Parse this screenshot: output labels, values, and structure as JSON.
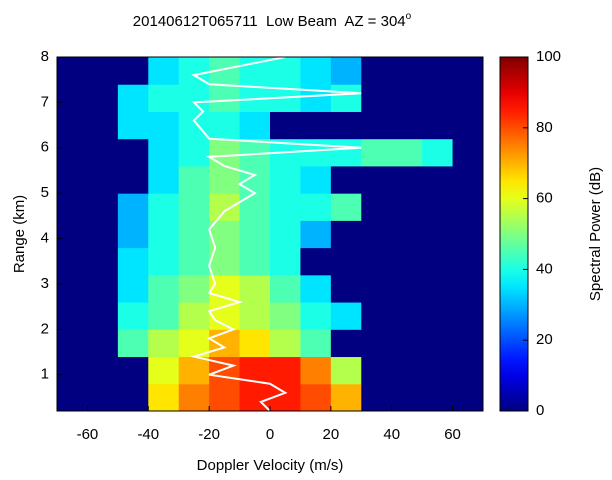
{
  "chart_data": {
    "type": "heatmap",
    "title": "20140612T065711  Low Beam  AZ = 304",
    "title_superscript": "o",
    "xlabel": "Doppler Velocity (m/s)",
    "ylabel": "Range (km)",
    "colorbar_label": "Spectral Power (dB)",
    "colormap": "jet",
    "xlim": [
      -70,
      70
    ],
    "xticks": [
      -60,
      -40,
      -20,
      0,
      20,
      40,
      60
    ],
    "ylim": [
      0.2,
      8
    ],
    "yticks": [
      1,
      2,
      3,
      4,
      5,
      6,
      7,
      8
    ],
    "zlim": [
      0,
      100
    ],
    "zticks": [
      0,
      20,
      40,
      60,
      80,
      100
    ],
    "x_edges": [
      -70,
      -60,
      -50,
      -40,
      -30,
      -20,
      -10,
      0,
      10,
      20,
      30,
      40,
      50,
      60,
      70
    ],
    "y_edges": [
      0.2,
      0.8,
      1.4,
      2.0,
      2.6,
      3.2,
      3.8,
      4.4,
      5.0,
      5.6,
      6.2,
      6.8,
      7.4,
      8.0
    ],
    "z": [
      [
        0,
        0,
        0,
        65,
        75,
        80,
        85,
        85,
        80,
        70,
        0,
        0,
        0,
        0
      ],
      [
        0,
        0,
        0,
        60,
        70,
        80,
        85,
        85,
        75,
        55,
        0,
        0,
        0,
        0
      ],
      [
        0,
        0,
        45,
        55,
        60,
        70,
        65,
        55,
        45,
        0,
        0,
        0,
        0,
        0
      ],
      [
        0,
        0,
        40,
        45,
        55,
        60,
        55,
        50,
        40,
        35,
        0,
        0,
        0,
        0
      ],
      [
        0,
        0,
        35,
        45,
        50,
        60,
        55,
        45,
        35,
        0,
        0,
        0,
        0,
        0
      ],
      [
        0,
        0,
        35,
        40,
        45,
        50,
        45,
        40,
        0,
        0,
        0,
        0,
        0,
        0
      ],
      [
        0,
        0,
        30,
        40,
        45,
        50,
        45,
        40,
        30,
        0,
        0,
        0,
        0,
        0
      ],
      [
        0,
        0,
        30,
        40,
        45,
        55,
        45,
        40,
        40,
        45,
        0,
        0,
        0,
        0
      ],
      [
        0,
        0,
        0,
        35,
        45,
        50,
        45,
        40,
        35,
        0,
        0,
        0,
        0,
        0
      ],
      [
        0,
        0,
        0,
        35,
        40,
        50,
        45,
        40,
        40,
        40,
        45,
        45,
        40,
        0
      ],
      [
        0,
        0,
        35,
        35,
        40,
        40,
        35,
        0,
        0,
        0,
        0,
        0,
        0,
        0
      ],
      [
        0,
        0,
        35,
        40,
        40,
        45,
        40,
        40,
        35,
        40,
        0,
        0,
        0,
        0
      ],
      [
        0,
        0,
        0,
        35,
        40,
        45,
        40,
        40,
        35,
        30,
        0,
        0,
        0,
        0
      ]
    ],
    "line": {
      "color": "#ffffff",
      "x": [
        0,
        -3,
        5,
        0,
        -20,
        -12,
        -25,
        -15,
        -20,
        -12,
        -18,
        -20,
        -10,
        -20,
        -18,
        -20,
        -18,
        -20,
        -15,
        -5,
        -10,
        -5,
        -15,
        -20,
        30,
        -20,
        -25,
        -22,
        -25,
        30,
        -20,
        -25,
        -10,
        5
      ],
      "y": [
        0.2,
        0.4,
        0.6,
        0.8,
        1.0,
        1.2,
        1.4,
        1.6,
        1.8,
        2.0,
        2.2,
        2.4,
        2.6,
        2.8,
        3.0,
        3.4,
        3.8,
        4.2,
        4.6,
        5.0,
        5.2,
        5.4,
        5.6,
        5.8,
        6.0,
        6.2,
        6.6,
        6.8,
        7.0,
        7.2,
        7.4,
        7.6,
        7.8,
        8.0
      ]
    }
  }
}
